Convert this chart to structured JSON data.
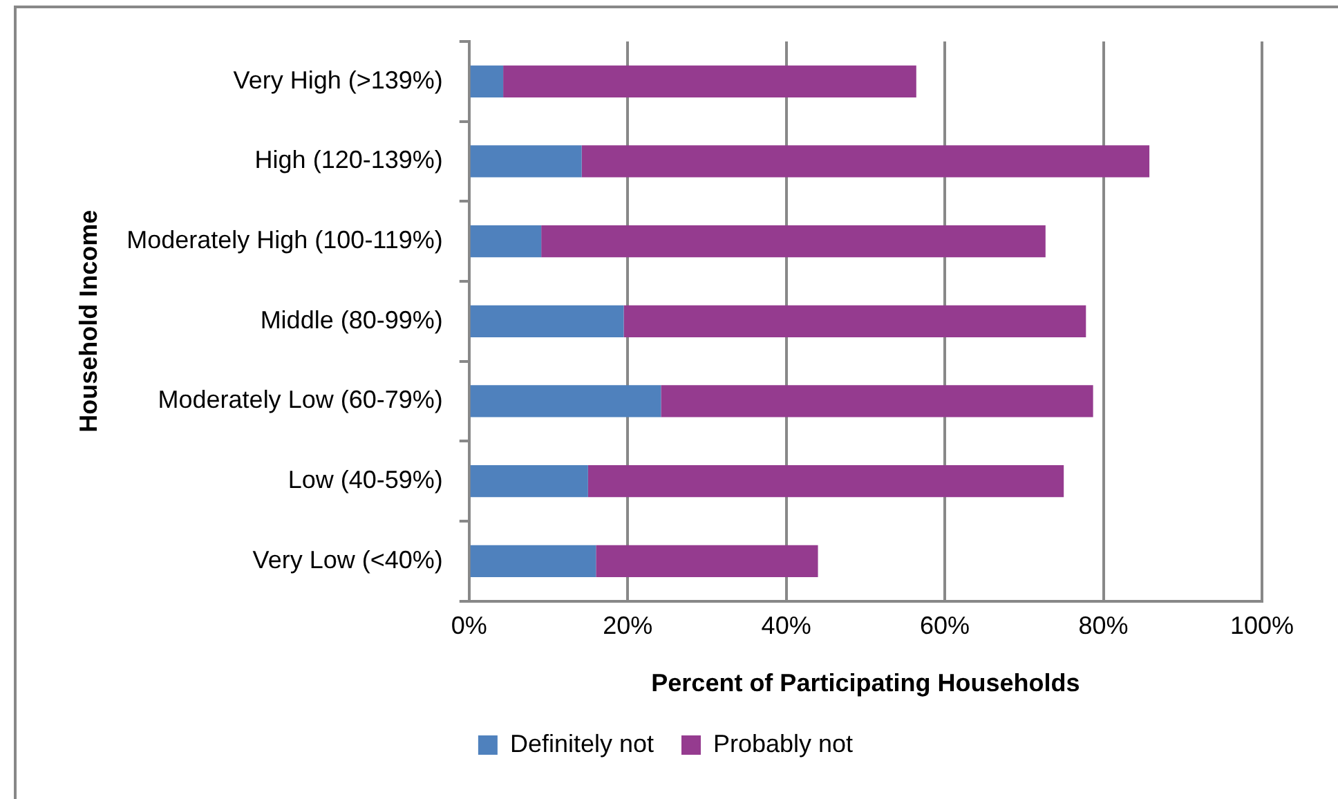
{
  "chart_data": {
    "type": "bar",
    "orientation": "horizontal",
    "stacked": true,
    "xlabel": "Percent of Participating Households",
    "ylabel": "Household Income",
    "categories": [
      "Very High (>139%)",
      "High (120-139%)",
      "Moderately High (100-119%)",
      "Middle (80-99%)",
      "Moderately Low (60-79%)",
      "Low (40-59%)",
      "Very Low (<40%)"
    ],
    "series": [
      {
        "name": "Definitely not",
        "color": "#4f81bd",
        "values": [
          4.3,
          14.2,
          9.1,
          19.5,
          24.2,
          15.0,
          16.0
        ]
      },
      {
        "name": "Probably not",
        "color": "#953b8f",
        "values": [
          52.1,
          71.6,
          63.6,
          58.3,
          54.5,
          60.0,
          28.0
        ]
      }
    ],
    "xlim": [
      0,
      100
    ],
    "xticks": [
      {
        "value": 0,
        "label": "0%"
      },
      {
        "value": 20,
        "label": "20%"
      },
      {
        "value": 40,
        "label": "40%"
      },
      {
        "value": 60,
        "label": "60%"
      },
      {
        "value": 80,
        "label": "80%"
      },
      {
        "value": 100,
        "label": "100%"
      }
    ],
    "grid": "x",
    "legend": "bottom"
  }
}
